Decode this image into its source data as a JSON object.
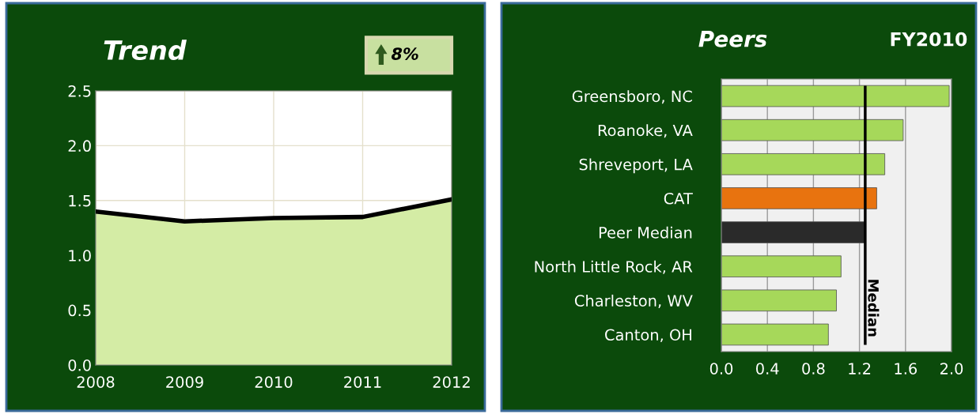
{
  "chart_data": [
    {
      "type": "area",
      "title": "Trend",
      "x": [
        2008,
        2009,
        2010,
        2011,
        2012
      ],
      "series": [
        {
          "color": "#d4eca5",
          "values": [
            1.4,
            1.31,
            1.34,
            1.35,
            1.51
          ]
        }
      ],
      "xlim": [
        2008,
        2012
      ],
      "xticks": [
        2008,
        2009,
        2010,
        2011,
        2012
      ],
      "ylim": [
        0,
        2.5
      ],
      "yticks": [
        {
          "value": 0,
          "label": "0.0"
        },
        {
          "value": 0.5,
          "label": "0.5"
        },
        {
          "value": 1.0,
          "label": "1.0"
        },
        {
          "value": 1.5,
          "label": "1.5"
        },
        {
          "value": 2.0,
          "label": "2.0"
        },
        {
          "value": 2.5,
          "label": "2.5"
        }
      ],
      "grid": true,
      "annotations": [
        "8%"
      ]
    },
    {
      "type": "bar",
      "orientation": "horizontal",
      "title": "Peers",
      "subtitle": "FY2010",
      "categories": [
        "Greensboro, NC",
        "Roanoke, VA",
        "Shreveport, LA",
        "CAT",
        "Peer Median",
        "North Little Rock, AR",
        "Charleston, WV",
        "Canton, OH"
      ],
      "values": [
        1.98,
        1.58,
        1.42,
        1.35,
        1.25,
        1.04,
        1.0,
        0.93
      ],
      "colors": [
        "#a6d85a",
        "#a6d85a",
        "#a6d85a",
        "#e8730f",
        "#2a2a2a",
        "#a6d85a",
        "#a6d85a",
        "#a6d85a"
      ],
      "xlim": [
        0,
        2.0
      ],
      "xticks": [
        {
          "value": 0,
          "label": "0.0"
        },
        {
          "value": 0.4,
          "label": "0.4"
        },
        {
          "value": 0.8,
          "label": "0.8"
        },
        {
          "value": 1.2,
          "label": "1.2"
        },
        {
          "value": 1.6,
          "label": "1.6"
        },
        {
          "value": 2.0,
          "label": "2.0"
        }
      ],
      "grid": "x",
      "ref_lines": [
        {
          "axis": "x",
          "value": 1.25,
          "label": "Median",
          "color": "#000000"
        }
      ]
    }
  ]
}
